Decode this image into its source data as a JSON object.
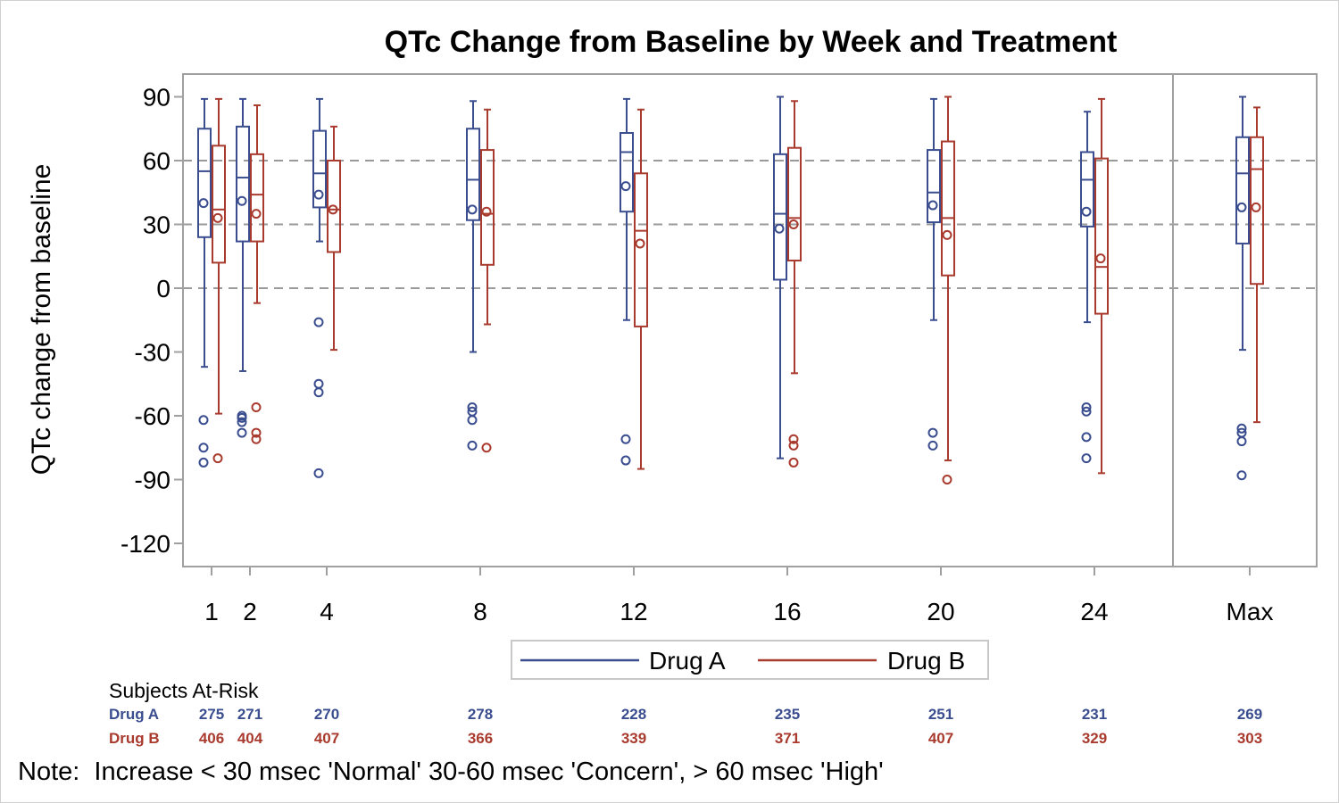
{
  "chart_data": {
    "type": "box",
    "title": "QTc Change from Baseline by Week and Treatment",
    "ylabel": "QTc change from baseline",
    "xlabel": "",
    "ylim": [
      -130,
      100
    ],
    "yticks": [
      90,
      60,
      30,
      0,
      -30,
      -60,
      -90,
      -120
    ],
    "reference_lines": [
      0,
      30,
      60
    ],
    "grid": false,
    "categories": [
      "1",
      "2",
      "4",
      "8",
      "12",
      "16",
      "20",
      "24",
      "Max"
    ],
    "week_values": [
      1,
      2,
      4,
      8,
      12,
      16,
      20,
      24
    ],
    "legend_position": "bottom",
    "series": [
      {
        "name": "Drug A",
        "color": "#3a4d8f",
        "boxes": [
          {
            "whisker_low": -37,
            "q1": 24,
            "median": 55,
            "q3": 75,
            "whisker_high": 89,
            "mean": 40,
            "outliers": [
              -62,
              -75,
              -82
            ]
          },
          {
            "whisker_low": -39,
            "q1": 22,
            "median": 52,
            "q3": 76,
            "whisker_high": 89,
            "mean": 41,
            "outliers": [
              -60,
              -61,
              -63,
              -68
            ]
          },
          {
            "whisker_low": 22,
            "q1": 38,
            "median": 54,
            "q3": 74,
            "whisker_high": 89,
            "mean": 44,
            "outliers": [
              -16,
              -45,
              -49,
              -87
            ]
          },
          {
            "whisker_low": -30,
            "q1": 32,
            "median": 51,
            "q3": 75,
            "whisker_high": 88,
            "mean": 37,
            "outliers": [
              -56,
              -58,
              -62,
              -74
            ]
          },
          {
            "whisker_low": -15,
            "q1": 36,
            "median": 64,
            "q3": 73,
            "whisker_high": 89,
            "mean": 48,
            "outliers": [
              -71,
              -81
            ]
          },
          {
            "whisker_low": -80,
            "q1": 4,
            "median": 35,
            "q3": 63,
            "whisker_high": 90,
            "mean": 28,
            "outliers": []
          },
          {
            "whisker_low": -15,
            "q1": 31,
            "median": 45,
            "q3": 65,
            "whisker_high": 89,
            "mean": 39,
            "outliers": [
              -68,
              -74
            ]
          },
          {
            "whisker_low": -16,
            "q1": 29,
            "median": 51,
            "q3": 64,
            "whisker_high": 83,
            "mean": 36,
            "outliers": [
              -56,
              -58,
              -70,
              -80
            ]
          },
          {
            "whisker_low": -29,
            "q1": 21,
            "median": 54,
            "q3": 71,
            "whisker_high": 90,
            "mean": 38,
            "outliers": [
              -66,
              -68,
              -72,
              -88
            ]
          }
        ],
        "at_risk": [
          275,
          271,
          270,
          278,
          228,
          235,
          251,
          231,
          269
        ]
      },
      {
        "name": "Drug B",
        "color": "#a93a2e",
        "boxes": [
          {
            "whisker_low": -59,
            "q1": 12,
            "median": 37,
            "q3": 67,
            "whisker_high": 89,
            "mean": 33,
            "outliers": [
              -80
            ]
          },
          {
            "whisker_low": -7,
            "q1": 22,
            "median": 44,
            "q3": 63,
            "whisker_high": 86,
            "mean": 35,
            "outliers": [
              -56,
              -68,
              -71
            ]
          },
          {
            "whisker_low": -29,
            "q1": 17,
            "median": 37,
            "q3": 60,
            "whisker_high": 76,
            "mean": 37,
            "outliers": []
          },
          {
            "whisker_low": -17,
            "q1": 11,
            "median": 35,
            "q3": 65,
            "whisker_high": 84,
            "mean": 36,
            "outliers": [
              -75
            ]
          },
          {
            "whisker_low": -85,
            "q1": -18,
            "median": 27,
            "q3": 54,
            "whisker_high": 84,
            "mean": 21,
            "outliers": []
          },
          {
            "whisker_low": -40,
            "q1": 13,
            "median": 33,
            "q3": 66,
            "whisker_high": 88,
            "mean": 30,
            "outliers": [
              -71,
              -74,
              -82
            ]
          },
          {
            "whisker_low": -81,
            "q1": 6,
            "median": 33,
            "q3": 69,
            "whisker_high": 90,
            "mean": 25,
            "outliers": [
              -90
            ]
          },
          {
            "whisker_low": -87,
            "q1": -12,
            "median": 10,
            "q3": 61,
            "whisker_high": 89,
            "mean": 14,
            "outliers": []
          },
          {
            "whisker_low": -63,
            "q1": 2,
            "median": 56,
            "q3": 71,
            "whisker_high": 85,
            "mean": 38,
            "outliers": []
          }
        ],
        "at_risk": [
          406,
          404,
          407,
          366,
          339,
          371,
          407,
          329,
          303
        ]
      }
    ],
    "at_risk_title": "Subjects At-Risk",
    "note": "Note:  Increase < 30 msec 'Normal' 30-60 msec 'Concern', > 60 msec 'High'"
  }
}
